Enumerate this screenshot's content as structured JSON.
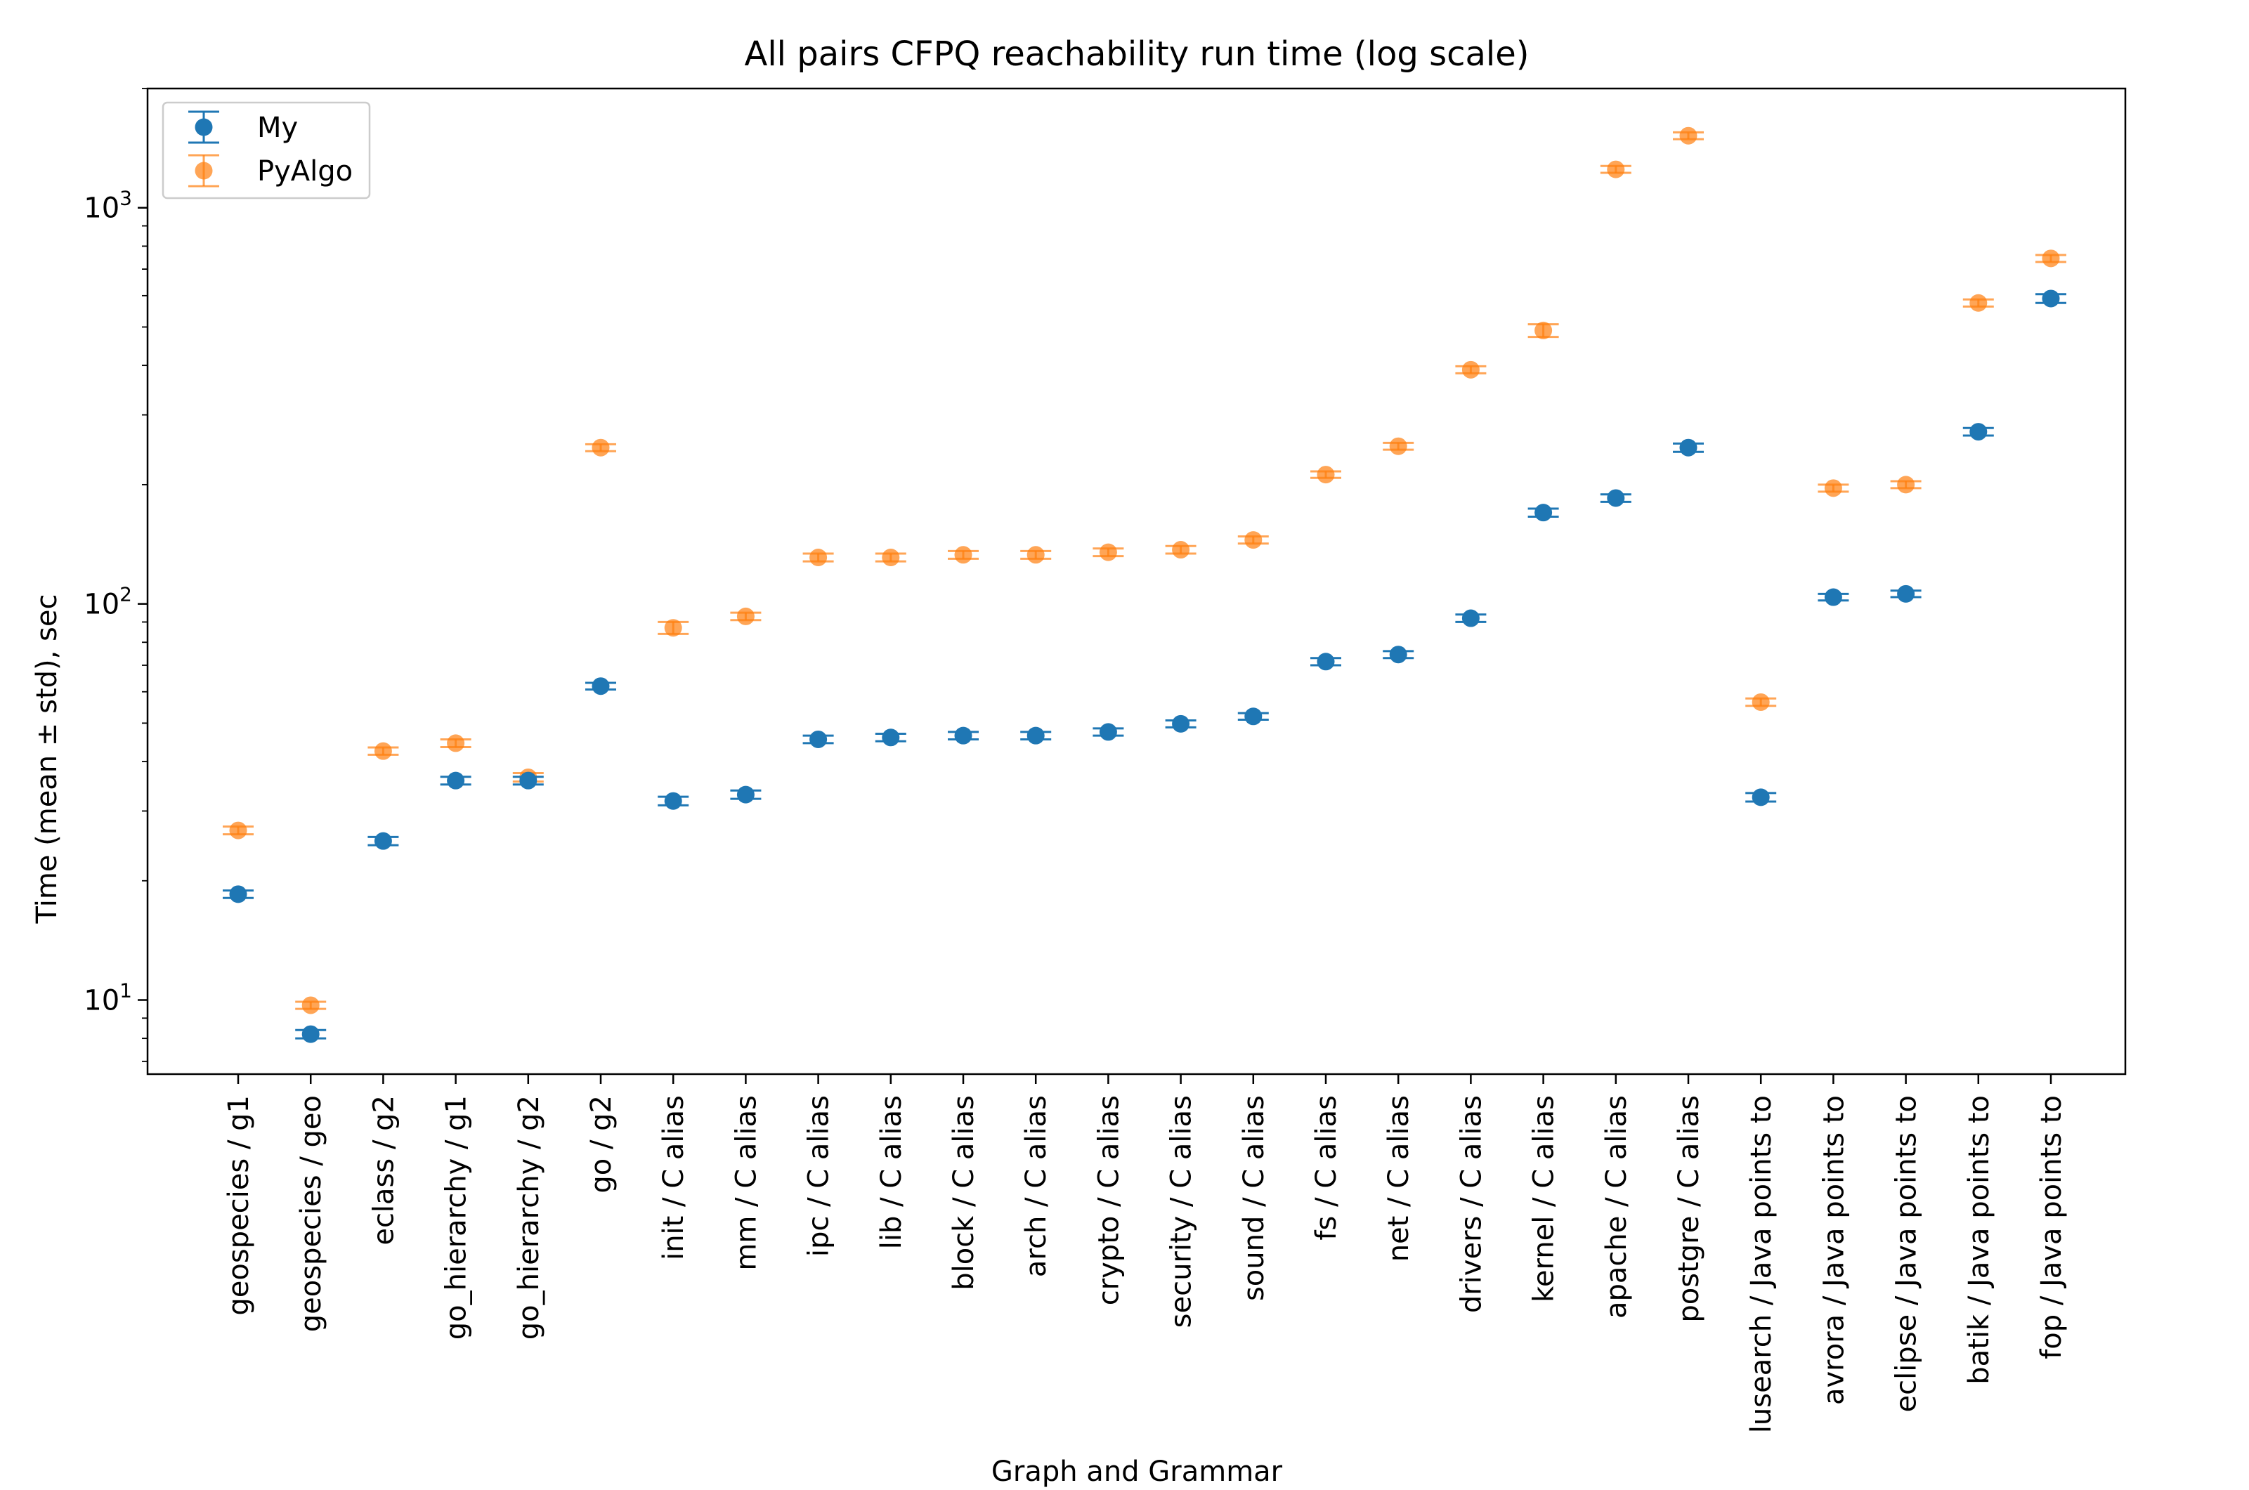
{
  "chart_data": {
    "type": "scatter",
    "title": "All pairs CFPQ reachability run time (log scale)",
    "xlabel": "Graph and Grammar",
    "ylabel": "Time (mean ± std), sec",
    "yscale": "log",
    "ylim": [
      6.5,
      2000
    ],
    "y_ticks": [
      {
        "value": 10,
        "base": "10",
        "exp": "1"
      },
      {
        "value": 100,
        "base": "10",
        "exp": "2"
      },
      {
        "value": 1000,
        "base": "10",
        "exp": "3"
      }
    ],
    "legend_position": "top-left",
    "grid": false,
    "categories": [
      "geospecies / g1",
      "geospecies / geo",
      "eclass / g2",
      "go_hierarchy / g1",
      "go_hierarchy / g2",
      "go / g2",
      "init / C alias",
      "mm / C alias",
      "ipc / C alias",
      "lib / C alias",
      "block / C alias",
      "arch / C alias",
      "crypto / C alias",
      "security / C alias",
      "sound / C alias",
      "fs / C alias",
      "net / C alias",
      "drivers / C alias",
      "kernel / C alias",
      "apache / C alias",
      "postgre / C alias",
      "lusearch / Java points to",
      "avrora / Java points to",
      "eclipse / Java points to",
      "batik / Java points to",
      "fop / Java points to"
    ],
    "series": [
      {
        "name": "My",
        "color": "#1f77b4",
        "values": [
          18.5,
          8.2,
          25.2,
          35.8,
          35.8,
          62,
          31.8,
          33,
          45.5,
          46,
          46.5,
          46.5,
          47.5,
          49.8,
          52,
          71.5,
          74.5,
          92,
          170,
          185,
          248,
          32.5,
          104,
          106,
          272,
          590
        ],
        "std": [
          0.4,
          0.2,
          0.6,
          0.8,
          0.8,
          1.2,
          0.8,
          0.8,
          1.0,
          1.0,
          1.0,
          1.0,
          1.0,
          1.0,
          1.0,
          1.5,
          1.5,
          2,
          4,
          4,
          6,
          0.8,
          2,
          2,
          6,
          15
        ]
      },
      {
        "name": "PyAlgo",
        "color": "#ff7f0e",
        "values": [
          26.8,
          9.7,
          42.5,
          44.5,
          36.5,
          248,
          87,
          93,
          131,
          131,
          133,
          133,
          135,
          137,
          145,
          212,
          250,
          390,
          490,
          1250,
          1520,
          56.5,
          196,
          200,
          575,
          745
        ],
        "std": [
          0.6,
          0.2,
          0.9,
          1.0,
          0.9,
          5,
          3,
          2,
          3,
          3,
          3,
          3,
          3,
          3,
          3,
          4,
          5,
          8,
          18,
          25,
          30,
          1.2,
          4,
          4,
          12,
          15
        ]
      }
    ]
  }
}
